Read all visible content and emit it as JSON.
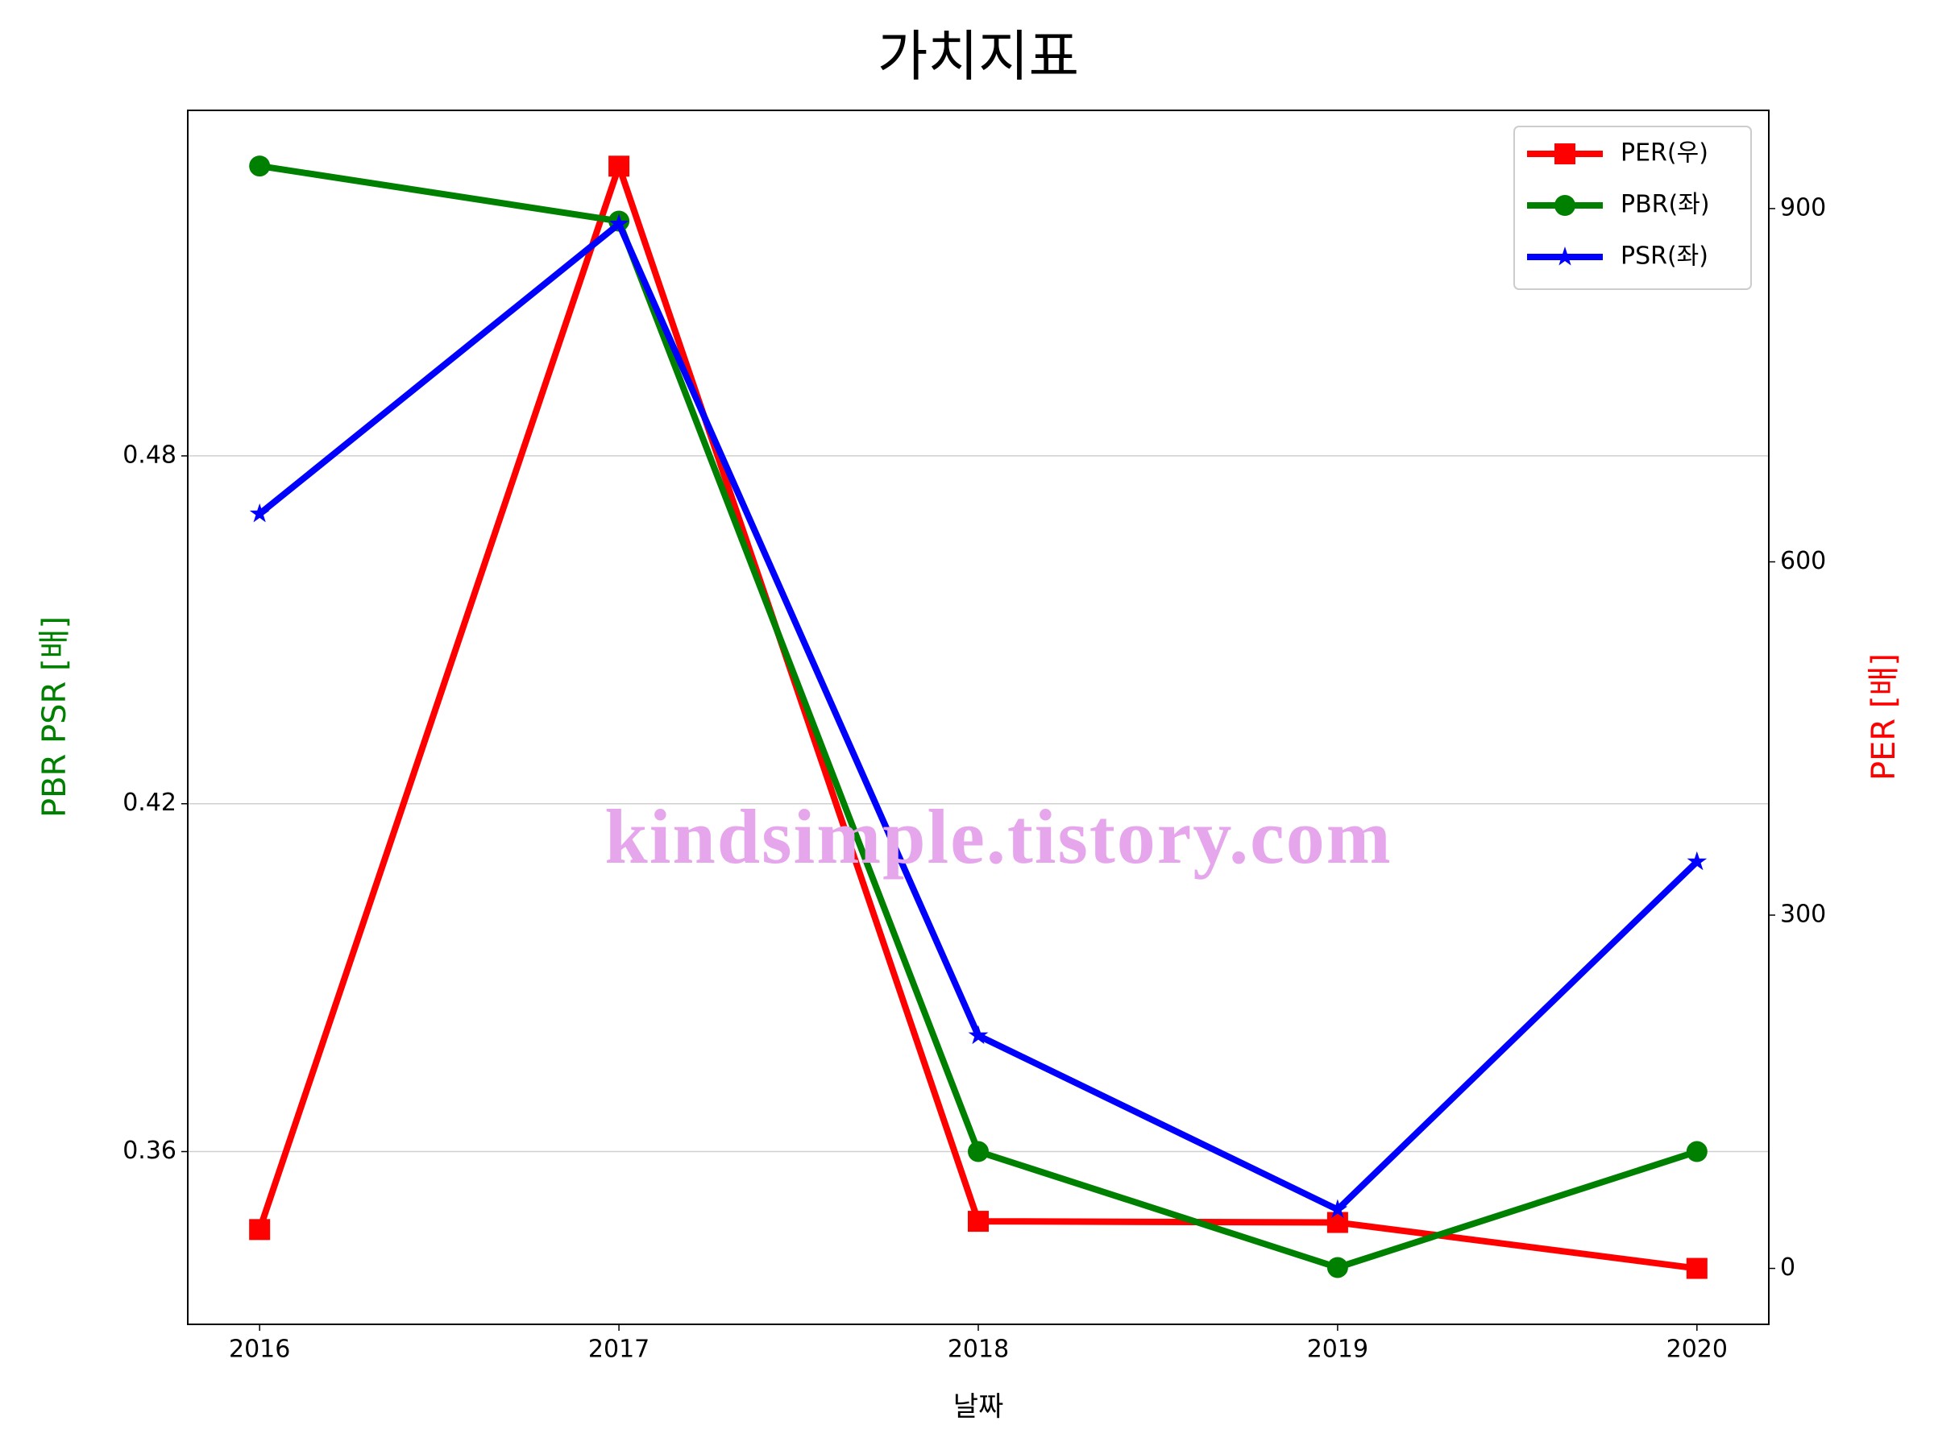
{
  "chart_data": {
    "type": "line",
    "title": "가치지표",
    "xlabel": "날짜",
    "ylabel": "PBR PSR [배]",
    "ylabel_color": "green",
    "y2label": "PER [배]",
    "y2label_color": "red",
    "annotation": "kindsimple.tistory.com",
    "x": [
      2016,
      2017,
      2018,
      2019,
      2020
    ],
    "xlim": [
      2015.8,
      2020.2
    ],
    "xticks": [
      2016,
      2017,
      2018,
      2019,
      2020
    ],
    "ylim": [
      0.3302,
      0.5396
    ],
    "yticks": [
      0.36,
      0.42,
      0.48
    ],
    "y2lim": [
      -47.5,
      983.4
    ],
    "y2ticks": [
      0,
      300,
      600,
      900
    ],
    "grid": true,
    "legend": "upper right",
    "series": [
      {
        "name": "PER(우)",
        "color": "#ff0000",
        "marker": "square",
        "axis": "y2",
        "values": [
          33,
          936,
          40,
          39,
          0
        ]
      },
      {
        "name": "PBR(좌)",
        "color": "#008000",
        "marker": "circle",
        "axis": "y",
        "values": [
          0.53,
          0.5205,
          0.36,
          0.34,
          0.36
        ]
      },
      {
        "name": "PSR(좌)",
        "color": "#0000ff",
        "marker": "star",
        "axis": "y",
        "values": [
          0.47,
          0.52,
          0.38,
          0.35,
          0.41
        ]
      }
    ]
  }
}
